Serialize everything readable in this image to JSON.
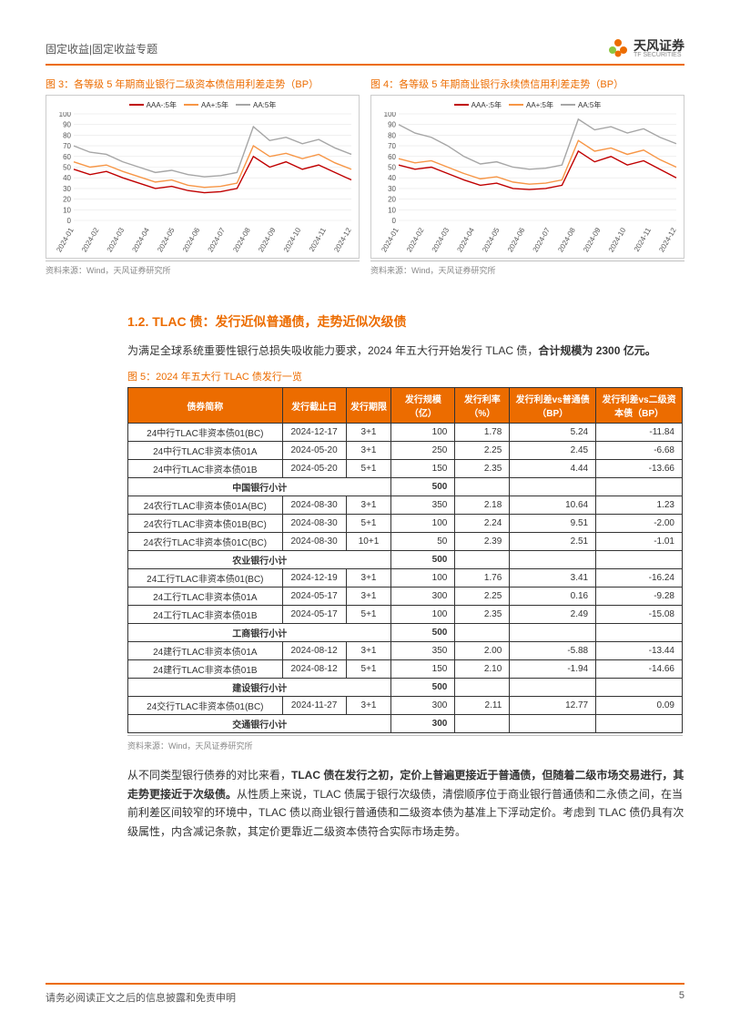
{
  "header": {
    "category": "固定收益|固定收益专题",
    "logo_cn": "天风证券",
    "logo_en": "TF SECURITIES"
  },
  "chart3": {
    "type": "line",
    "title": "图 3：各等级 5 年期商业银行二级资本债信用利差走势（BP）",
    "ylabel": "",
    "ylim": [
      0,
      100
    ],
    "ytick_step": 10,
    "xticks": [
      "2024-01",
      "2024-02",
      "2024-03",
      "2024-04",
      "2024-05",
      "2024-06",
      "2024-07",
      "2024-08",
      "2024-09",
      "2024-10",
      "2024-11",
      "2024-12"
    ],
    "tick_fontsize": 8,
    "grid_color": "#e6e6e6",
    "background_color": "#ffffff",
    "line_width": 1.4,
    "series": [
      {
        "label": "AAA-:5年",
        "color": "#c00000",
        "values": [
          48,
          43,
          46,
          40,
          35,
          30,
          32,
          28,
          26,
          27,
          30,
          60,
          50,
          55,
          48,
          52,
          45,
          38
        ]
      },
      {
        "label": "AA+:5年",
        "color": "#f79646",
        "values": [
          55,
          50,
          52,
          46,
          41,
          36,
          38,
          33,
          31,
          32,
          35,
          70,
          60,
          63,
          58,
          62,
          54,
          48
        ]
      },
      {
        "label": "AA:5年",
        "color": "#a6a6a6",
        "values": [
          70,
          64,
          62,
          55,
          50,
          45,
          47,
          43,
          41,
          42,
          45,
          88,
          75,
          78,
          72,
          76,
          68,
          62
        ]
      }
    ],
    "source": "资料来源：Wind，天风证券研究所"
  },
  "chart4": {
    "type": "line",
    "title": "图 4：各等级 5 年期商业银行永续债信用利差走势（BP）",
    "ylabel": "",
    "ylim": [
      0,
      100
    ],
    "ytick_step": 10,
    "xticks": [
      "2024-01",
      "2024-02",
      "2024-03",
      "2024-04",
      "2024-05",
      "2024-06",
      "2024-07",
      "2024-08",
      "2024-09",
      "2024-10",
      "2024-11",
      "2024-12"
    ],
    "tick_fontsize": 8,
    "grid_color": "#e6e6e6",
    "background_color": "#ffffff",
    "line_width": 1.4,
    "series": [
      {
        "label": "AAA-:5年",
        "color": "#c00000",
        "values": [
          52,
          48,
          50,
          44,
          38,
          33,
          35,
          30,
          29,
          30,
          33,
          65,
          55,
          60,
          52,
          56,
          48,
          40
        ]
      },
      {
        "label": "AA+:5年",
        "color": "#f79646",
        "values": [
          58,
          54,
          56,
          50,
          44,
          39,
          41,
          36,
          34,
          35,
          38,
          75,
          65,
          68,
          62,
          66,
          57,
          50
        ]
      },
      {
        "label": "AA:5年",
        "color": "#a6a6a6",
        "values": [
          90,
          82,
          78,
          70,
          60,
          53,
          55,
          50,
          48,
          49,
          52,
          95,
          85,
          88,
          82,
          86,
          78,
          72
        ]
      }
    ],
    "source": "资料来源：Wind，天风证券研究所"
  },
  "section12": {
    "heading": "1.2. TLAC 债：发行近似普通债，走势近似次级债",
    "para1_part1": "为满足全球系统重要性银行总损失吸收能力要求，2024 年五大行开始发行 TLAC 债，",
    "para1_bold": "合计规模为 2300 亿元。",
    "para2_part1": "从不同类型银行债券的对比来看，",
    "para2_bold": "TLAC 债在发行之初，定价上普遍更接近于普通债，但随着二级市场交易进行，其走势更接近于次级债。",
    "para2_part2": "从性质上来说，TLAC 债属于银行次级债，清偿顺序位于商业银行普通债和二永债之间，在当前利差区间较窄的环境中，TLAC 债以商业银行普通债和二级资本债为基准上下浮动定价。考虑到 TLAC 债仍具有次级属性，内含减记条款，其定价更靠近二级资本债符合实际市场走势。"
  },
  "table5": {
    "title": "图 5：2024 年五大行 TLAC 债发行一览",
    "headers": [
      "债券简称",
      "发行截止日",
      "发行期限",
      "发行规模（亿）",
      "发行利率（%）",
      "发行利差vs普通债（BP）",
      "发行利差vs二级资本债（BP）"
    ],
    "header_bg": "#ec6c00",
    "header_color": "#ffffff",
    "border_color": "#333333",
    "col_widths": [
      "170px",
      "70px",
      "50px",
      "70px",
      "60px",
      "95px",
      "95px"
    ],
    "groups": [
      {
        "rows": [
          [
            "24中行TLAC非资本债01(BC)",
            "2024-12-17",
            "3+1",
            "100",
            "1.78",
            "5.24",
            "-11.84"
          ],
          [
            "24中行TLAC非资本债01A",
            "2024-05-20",
            "3+1",
            "250",
            "2.25",
            "2.45",
            "-6.68"
          ],
          [
            "24中行TLAC非资本债01B",
            "2024-05-20",
            "5+1",
            "150",
            "2.35",
            "4.44",
            "-13.66"
          ]
        ],
        "subtotal_label": "中国银行小计",
        "subtotal_value": "500"
      },
      {
        "rows": [
          [
            "24农行TLAC非资本债01A(BC)",
            "2024-08-30",
            "3+1",
            "350",
            "2.18",
            "10.64",
            "1.23"
          ],
          [
            "24农行TLAC非资本债01B(BC)",
            "2024-08-30",
            "5+1",
            "100",
            "2.24",
            "9.51",
            "-2.00"
          ],
          [
            "24农行TLAC非资本债01C(BC)",
            "2024-08-30",
            "10+1",
            "50",
            "2.39",
            "2.51",
            "-1.01"
          ]
        ],
        "subtotal_label": "农业银行小计",
        "subtotal_value": "500"
      },
      {
        "rows": [
          [
            "24工行TLAC非资本债01(BC)",
            "2024-12-19",
            "3+1",
            "100",
            "1.76",
            "3.41",
            "-16.24"
          ],
          [
            "24工行TLAC非资本债01A",
            "2024-05-17",
            "3+1",
            "300",
            "2.25",
            "0.16",
            "-9.28"
          ],
          [
            "24工行TLAC非资本债01B",
            "2024-05-17",
            "5+1",
            "100",
            "2.35",
            "2.49",
            "-15.08"
          ]
        ],
        "subtotal_label": "工商银行小计",
        "subtotal_value": "500"
      },
      {
        "rows": [
          [
            "24建行TLAC非资本债01A",
            "2024-08-12",
            "3+1",
            "350",
            "2.00",
            "-5.88",
            "-13.44"
          ],
          [
            "24建行TLAC非资本债01B",
            "2024-08-12",
            "5+1",
            "150",
            "2.10",
            "-1.94",
            "-14.66"
          ]
        ],
        "subtotal_label": "建设银行小计",
        "subtotal_value": "500"
      },
      {
        "rows": [
          [
            "24交行TLAC非资本债01(BC)",
            "2024-11-27",
            "3+1",
            "300",
            "2.11",
            "12.77",
            "0.09"
          ]
        ],
        "subtotal_label": "交通银行小计",
        "subtotal_value": "300"
      }
    ],
    "source": "资料来源：Wind，天风证券研究所"
  },
  "footer": {
    "disclaimer": "请务必阅读正文之后的信息披露和免责申明",
    "page": "5"
  }
}
